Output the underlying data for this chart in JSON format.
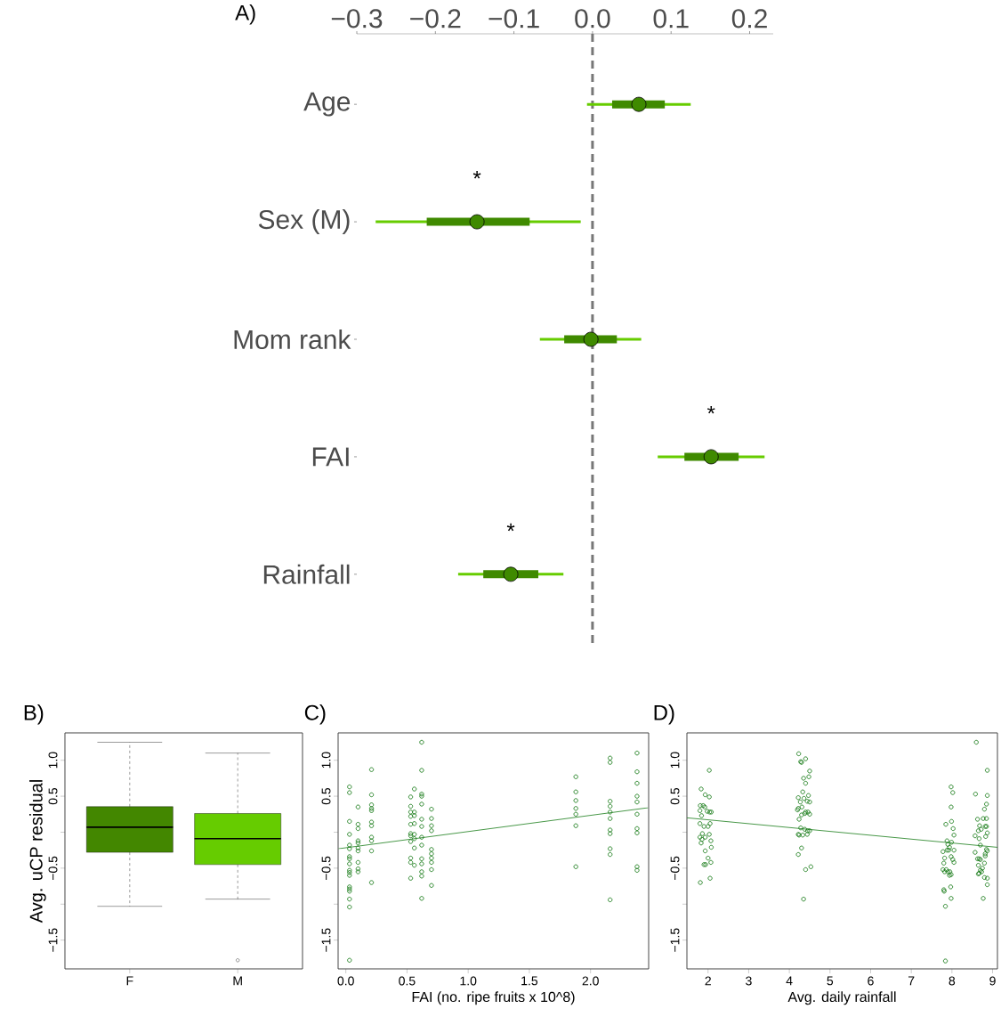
{
  "chart_data": [
    {
      "type": "box",
      "title": "A)",
      "orientation": "horizontal",
      "categories": [
        "Age",
        "Sex (M)",
        "Mom rank",
        "FAI",
        "Rainfall"
      ],
      "color": "#3f8a00",
      "marker": "circle",
      "boxes": [
        {
          "low": -0.007,
          "q1": 0.025,
          "median": 0.059,
          "q3": 0.092,
          "high": 0.125
        },
        {
          "low": -0.276,
          "q1": -0.211,
          "median": -0.147,
          "q3": -0.08,
          "high": -0.015
        },
        {
          "low": -0.067,
          "q1": -0.036,
          "median": -0.002,
          "q3": 0.031,
          "high": 0.062
        },
        {
          "low": 0.083,
          "q1": 0.117,
          "median": 0.151,
          "q3": 0.186,
          "high": 0.219
        },
        {
          "low": -0.171,
          "q1": -0.139,
          "median": -0.104,
          "q3": -0.069,
          "high": -0.037
        }
      ],
      "annotations": [
        "*",
        "*",
        "*"
      ],
      "ref_lines": [
        {
          "axis": "x",
          "value": 0,
          "color": "#777777",
          "line_style": "dashed"
        }
      ],
      "xlim": [
        -0.3,
        0.23
      ],
      "xticks": [
        {
          "value": -0.3,
          "label": "−0.3"
        },
        {
          "value": -0.2,
          "label": "−0.2"
        },
        {
          "value": -0.1,
          "label": "−0.1"
        },
        {
          "value": 0,
          "label": "0.0"
        },
        0.1,
        0.2
      ]
    },
    {
      "type": "box",
      "title": "B)",
      "ylabel": "Avg. uCP residual",
      "categories": [
        "F",
        "M"
      ],
      "colors": [
        "#438700",
        "#66cc00"
      ],
      "boxes": [
        {
          "low": -1.03,
          "q1": -0.28,
          "median": 0.07,
          "q3": 0.355,
          "high": 1.25
        },
        {
          "low": -0.93,
          "q1": -0.45,
          "median": -0.09,
          "q3": 0.26,
          "high": 1.1,
          "outliers": [
            -1.78
          ]
        }
      ],
      "ylim": [
        -1.9,
        1.38
      ],
      "yticks": [
        {
          "value": -1.5,
          "label": "−1.5"
        },
        {
          "value": -1,
          "label": null
        },
        {
          "value": -0.5,
          "label": "−0.5"
        },
        {
          "value": 0,
          "label": null
        },
        {
          "value": 0.5,
          "label": "0.5"
        },
        {
          "value": 1,
          "label": "1.0"
        }
      ]
    },
    {
      "type": "scatter",
      "title": "C)",
      "xlabel": "FAI (no. ripe fruits x 10^8)",
      "series": [
        {
          "color": "#1b7d1b",
          "marker": "circle",
          "x": [
            0.03,
            0.03,
            0.03,
            0.03,
            0.03,
            0.03,
            0.03,
            0.03,
            0.03,
            0.03,
            0.03,
            0.03,
            0.03,
            0.03,
            0.03,
            0.03,
            0.03,
            0.03,
            0.1,
            0.1,
            0.1,
            0.1,
            0.1,
            0.1,
            0.1,
            0.1,
            0.1,
            0.1,
            0.21,
            0.21,
            0.21,
            0.21,
            0.21,
            0.21,
            0.21,
            0.21,
            0.21,
            0.21,
            0.21,
            0.53,
            0.53,
            0.53,
            0.53,
            0.53,
            0.53,
            0.53,
            0.53,
            0.53,
            0.53,
            0.53,
            0.56,
            0.56,
            0.56,
            0.56,
            0.56,
            0.56,
            0.56,
            0.56,
            0.62,
            0.62,
            0.62,
            0.62,
            0.62,
            0.62,
            0.62,
            0.62,
            0.62,
            0.62,
            0.62,
            0.62,
            0.62,
            0.62,
            0.7,
            0.7,
            0.7,
            0.7,
            0.7,
            0.7,
            0.7,
            0.7,
            0.7,
            0.7,
            1.88,
            1.88,
            1.88,
            1.88,
            1.88,
            1.88,
            1.88,
            2.16,
            2.16,
            2.16,
            2.16,
            2.16,
            2.16,
            2.16,
            2.16,
            2.16,
            2.16,
            2.16,
            2.38,
            2.38,
            2.38,
            2.38,
            2.38,
            2.38,
            2.38,
            2.38,
            2.38,
            2.38
          ],
          "values": [
            0.63,
            0.55,
            0.15,
            -0.03,
            -0.18,
            -0.23,
            -0.34,
            -0.37,
            -0.44,
            -0.53,
            -0.56,
            -0.6,
            -0.76,
            -0.79,
            -0.82,
            -0.93,
            -1.04,
            -1.78,
            0.35,
            0.11,
            0.05,
            -0.12,
            -0.15,
            -0.22,
            -0.26,
            -0.42,
            -0.51,
            -0.55,
            0.87,
            0.52,
            0.38,
            0.33,
            0.3,
            0.14,
            0.09,
            -0.07,
            -0.12,
            -0.26,
            -0.7,
            0.49,
            0.36,
            0.28,
            0.22,
            0.11,
            -0.02,
            -0.05,
            -0.13,
            -0.36,
            -0.42,
            -0.64,
            0.6,
            0.28,
            0.23,
            0.12,
            -0.03,
            -0.09,
            -0.22,
            -0.46,
            1.25,
            0.86,
            0.53,
            0.5,
            0.39,
            0.18,
            0.08,
            -0.07,
            -0.18,
            -0.37,
            -0.44,
            -0.55,
            -0.61,
            -0.92,
            0.32,
            0.19,
            0.09,
            0.02,
            -0.24,
            -0.3,
            -0.36,
            -0.42,
            -0.52,
            -0.74,
            0.77,
            0.56,
            0.44,
            0.33,
            0.25,
            0.09,
            -0.48,
            1.03,
            0.97,
            0.43,
            0.36,
            0.28,
            0.19,
            0.03,
            -0.02,
            -0.23,
            -0.31,
            -0.94,
            1.1,
            0.84,
            0.68,
            0.5,
            0.42,
            0.25,
            0.05,
            -0.01,
            -0.48,
            -0.53
          ]
        },
        {
          "type": "line",
          "color": "#1b7d1b",
          "x": [
            -0.06,
            2.47
          ],
          "values": [
            -0.23,
            0.34
          ]
        }
      ],
      "xlim": [
        -0.063,
        2.475
      ],
      "xticks": [
        {
          "value": 0,
          "label": "0.0"
        },
        0.5,
        {
          "value": 1,
          "label": "1.0"
        },
        1.5,
        {
          "value": 2,
          "label": "2.0"
        }
      ],
      "ylim": [
        -1.9,
        1.38
      ],
      "yticks": [
        {
          "value": -1.5,
          "label": "−1.5"
        },
        {
          "value": -1,
          "label": null
        },
        {
          "value": -0.5,
          "label": "−0.5"
        },
        {
          "value": 0,
          "label": null
        },
        {
          "value": 0.5,
          "label": "0.5"
        },
        {
          "value": 1,
          "label": "1.0"
        }
      ]
    },
    {
      "type": "scatter",
      "title": "D)",
      "xlabel": "Avg. daily rainfall",
      "series": [
        {
          "color": "#1b7d1b",
          "marker": "circle",
          "x": [
            1.83,
            1.93,
            2.03,
            2.03,
            1.81,
            1.88,
            1.92,
            1.8,
            1.84,
            1.98,
            2.04,
            2.08,
            1.8,
            1.9,
            2.05,
            2.0,
            1.86,
            1.8,
            1.85,
            1.93,
            2.03,
            1.83,
            2.07,
            2.08,
            1.93,
            2.0,
            2.07,
            1.9,
            1.94,
            1.81,
            2.05,
            4.23,
            4.4,
            4.28,
            4.3,
            4.5,
            4.35,
            4.48,
            4.4,
            4.33,
            4.47,
            4.22,
            4.36,
            4.44,
            4.5,
            4.27,
            4.22,
            4.31,
            4.4,
            4.2,
            4.46,
            4.3,
            4.38,
            4.5,
            4.24,
            4.28,
            4.38,
            4.45,
            4.22,
            4.33,
            4.44,
            4.5,
            4.24,
            4.3,
            4.22,
            4.4,
            4.53,
            4.35,
            7.85,
            7.98,
            8.02,
            7.98,
            7.99,
            8.03,
            8.05,
            7.88,
            7.9,
            7.94,
            7.99,
            7.88,
            7.92,
            8.05,
            7.78,
            7.98,
            8.02,
            8.05,
            7.82,
            7.8,
            7.78,
            7.82,
            7.86,
            7.9,
            7.95,
            7.98,
            7.94,
            7.8,
            7.81,
            7.97,
            7.98,
            7.84,
            7.84,
            8.6,
            8.87,
            8.58,
            8.87,
            8.85,
            8.8,
            8.63,
            8.77,
            8.85,
            8.68,
            8.82,
            8.85,
            8.72,
            8.65,
            8.57,
            8.87,
            8.83,
            8.67,
            8.7,
            8.85,
            8.87,
            8.82,
            8.57,
            8.63,
            8.67,
            8.7,
            8.82,
            8.8,
            8.65,
            8.75,
            8.7,
            8.67,
            8.73,
            8.65,
            8.8,
            8.87,
            8.87,
            8.77
          ],
          "values": [
            0.6,
            0.52,
            0.49,
            0.86,
            0.37,
            0.37,
            0.35,
            0.3,
            0.23,
            0.29,
            0.28,
            0.28,
            0.12,
            0.08,
            0.12,
            0.08,
            -0.02,
            -0.07,
            -0.1,
            -0.07,
            -0.03,
            -0.15,
            -0.12,
            -0.21,
            -0.26,
            -0.36,
            -0.42,
            -0.45,
            -0.45,
            -0.7,
            -0.64,
            1.09,
            1.02,
            0.98,
            0.97,
            0.85,
            0.75,
            0.77,
            0.68,
            0.56,
            0.51,
            0.48,
            0.47,
            0.43,
            0.42,
            0.42,
            0.33,
            0.35,
            0.28,
            0.31,
            0.28,
            0.24,
            0.26,
            0.25,
            0.18,
            0.06,
            0.04,
            0.02,
            -0.03,
            -0.04,
            -0.03,
            0.02,
            -0.04,
            -0.22,
            -0.31,
            -0.52,
            -0.48,
            -0.93,
            0.11,
            0.63,
            0.55,
            0.35,
            0.15,
            0.05,
            -0.04,
            -0.12,
            -0.17,
            -0.21,
            -0.14,
            -0.25,
            -0.25,
            -0.25,
            -0.27,
            -0.34,
            -0.38,
            -0.42,
            -0.36,
            -0.43,
            -0.52,
            -0.55,
            -0.52,
            -0.55,
            -0.55,
            -0.59,
            -0.6,
            -0.8,
            -0.82,
            -0.76,
            -0.92,
            -1.03,
            -1.79,
            1.25,
            0.86,
            0.53,
            0.51,
            0.39,
            0.32,
            0.18,
            0.19,
            0.19,
            0.09,
            0.08,
            0.08,
            0.04,
            0.02,
            -0.05,
            -0.01,
            -0.06,
            -0.09,
            -0.18,
            -0.24,
            -0.26,
            -0.3,
            -0.28,
            -0.37,
            -0.37,
            -0.38,
            -0.33,
            -0.43,
            -0.46,
            -0.5,
            -0.53,
            -0.57,
            -0.55,
            -0.58,
            -0.63,
            -0.64,
            -0.73,
            -0.92
          ]
        },
        {
          "type": "line",
          "color": "#1b7d1b",
          "x": [
            1.48,
            9.12
          ],
          "values": [
            0.2,
            -0.21
          ]
        }
      ],
      "xlim": [
        1.48,
        9.12
      ],
      "xticks": [
        2,
        3,
        4,
        5,
        6,
        7,
        8,
        9
      ],
      "ylim": [
        -1.9,
        1.38
      ],
      "yticks": [
        {
          "value": -1.5,
          "label": "−1.5"
        },
        {
          "value": -1,
          "label": null
        },
        {
          "value": -0.5,
          "label": "−0.5"
        },
        {
          "value": 0,
          "label": null
        },
        {
          "value": 0.5,
          "label": "0.5"
        },
        {
          "value": 1,
          "label": "1.0"
        }
      ]
    }
  ]
}
